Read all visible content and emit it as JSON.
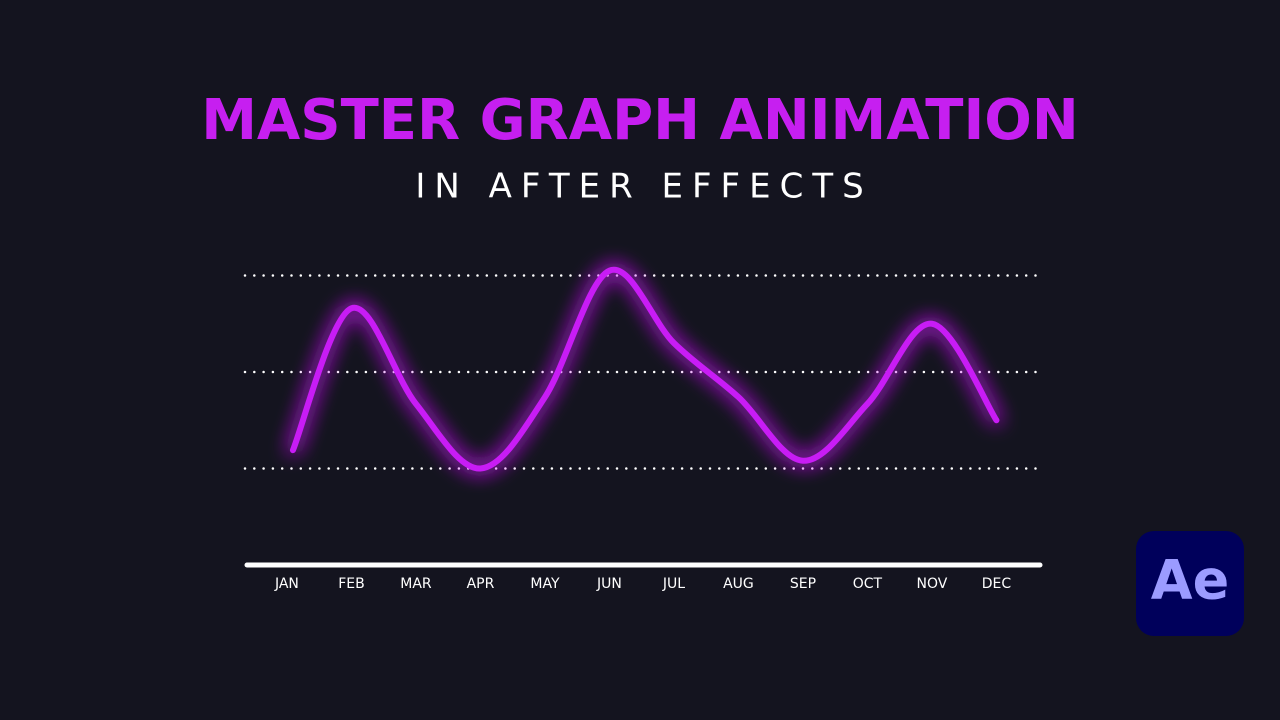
{
  "chart_data": {
    "type": "line",
    "title": "MASTER GRAPH ANIMATION",
    "subtitle": "IN AFTER EFFECTS",
    "categories": [
      "JAN",
      "FEB",
      "MAR",
      "APR",
      "MAY",
      "JUN",
      "JUL",
      "AUG",
      "SEP",
      "OCT",
      "NOV",
      "DEC"
    ],
    "values": [
      0.19,
      1.66,
      0.67,
      0,
      0.74,
      2.05,
      1.3,
      0.74,
      0.08,
      0.67,
      1.5,
      0.5
    ],
    "color": "#c81cf5",
    "ylim": [
      -1,
      2.1
    ],
    "yticks": [
      0,
      1,
      2
    ],
    "grid": true
  },
  "logo_text": "Ae"
}
